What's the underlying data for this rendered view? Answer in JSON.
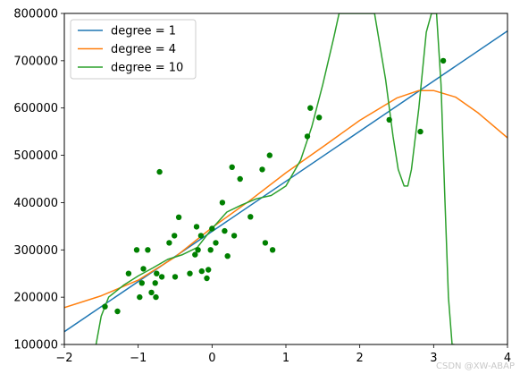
{
  "chart_data": {
    "type": "scatter",
    "xlim": [
      -2,
      4
    ],
    "ylim": [
      100000,
      800000
    ],
    "x_ticks": [
      -2,
      -1,
      0,
      1,
      2,
      3,
      4
    ],
    "y_ticks": [
      100000,
      200000,
      300000,
      400000,
      500000,
      600000,
      700000,
      800000
    ],
    "x_tick_labels": [
      "−2",
      "−1",
      "0",
      "1",
      "2",
      "3",
      "4"
    ],
    "y_tick_labels": [
      "100000",
      "200000",
      "300000",
      "400000",
      "500000",
      "600000",
      "700000",
      "800000"
    ],
    "grid": false,
    "legend_position": "upper-left",
    "scatter": {
      "color": "#008000",
      "points": [
        [
          -1.45,
          180000
        ],
        [
          -1.28,
          170000
        ],
        [
          -1.13,
          250000
        ],
        [
          -1.02,
          300000
        ],
        [
          -0.98,
          200000
        ],
        [
          -0.95,
          230000
        ],
        [
          -0.93,
          260000
        ],
        [
          -0.87,
          300000
        ],
        [
          -0.82,
          210000
        ],
        [
          -0.77,
          230000
        ],
        [
          -0.76,
          200000
        ],
        [
          -0.75,
          250000
        ],
        [
          -0.71,
          465000
        ],
        [
          -0.68,
          243000
        ],
        [
          -0.58,
          315000
        ],
        [
          -0.51,
          330000
        ],
        [
          -0.5,
          243000
        ],
        [
          -0.45,
          369000
        ],
        [
          -0.3,
          250000
        ],
        [
          -0.23,
          290000
        ],
        [
          -0.21,
          349000
        ],
        [
          -0.19,
          300000
        ],
        [
          -0.15,
          330000
        ],
        [
          -0.14,
          255000
        ],
        [
          -0.07,
          240000
        ],
        [
          -0.05,
          258000
        ],
        [
          -0.02,
          300000
        ],
        [
          0.0,
          345000
        ],
        [
          0.05,
          315000
        ],
        [
          0.14,
          400000
        ],
        [
          0.17,
          340000
        ],
        [
          0.21,
          287000
        ],
        [
          0.27,
          475000
        ],
        [
          0.3,
          330000
        ],
        [
          0.38,
          450000
        ],
        [
          0.52,
          370000
        ],
        [
          0.68,
          470000
        ],
        [
          0.72,
          315000
        ],
        [
          0.78,
          500000
        ],
        [
          0.82,
          300000
        ],
        [
          1.29,
          540000
        ],
        [
          1.33,
          600000
        ],
        [
          1.45,
          580000
        ],
        [
          2.4,
          575000
        ],
        [
          2.82,
          550000
        ],
        [
          3.13,
          700000
        ]
      ]
    },
    "series": [
      {
        "name": "degree = 1",
        "color": "#1f77b4",
        "x": [
          -2,
          4
        ],
        "y": [
          127000,
          763000
        ]
      },
      {
        "name": "degree = 4",
        "color": "#ff7f0e",
        "x": [
          -2,
          -1.5,
          -1,
          -0.5,
          0,
          0.5,
          1,
          1.5,
          2,
          2.5,
          2.8,
          3,
          3.3,
          3.6,
          4
        ],
        "y": [
          178000,
          203000,
          236000,
          285000,
          347000,
          403000,
          463000,
          518000,
          574000,
          621000,
          637000,
          637000,
          623000,
          590000,
          537000
        ]
      },
      {
        "name": "degree = 10",
        "color": "#2ca02c",
        "x": [
          -1.57,
          -1.5,
          -1.4,
          -1.2,
          -1.0,
          -0.8,
          -0.6,
          -0.4,
          -0.2,
          0,
          0.2,
          0.4,
          0.6,
          0.8,
          1.0,
          1.2,
          1.35,
          1.5,
          1.65,
          1.72,
          1.85,
          2.0,
          2.2,
          2.35,
          2.45,
          2.52,
          2.6,
          2.65,
          2.7,
          2.8,
          2.9,
          2.97,
          3.04,
          3.1,
          3.15,
          3.2,
          3.25,
          3.28
        ],
        "y": [
          100000,
          160000,
          200000,
          225000,
          245000,
          262000,
          280000,
          290000,
          305000,
          345000,
          380000,
          395000,
          408000,
          415000,
          435000,
          490000,
          560000,
          650000,
          750000,
          800000,
          800000,
          800000,
          800000,
          660000,
          540000,
          470000,
          435000,
          435000,
          470000,
          600000,
          760000,
          800000,
          800000,
          650000,
          420000,
          200000,
          100000,
          100000
        ]
      }
    ]
  },
  "watermark": "CSDN @XW-ABAP"
}
